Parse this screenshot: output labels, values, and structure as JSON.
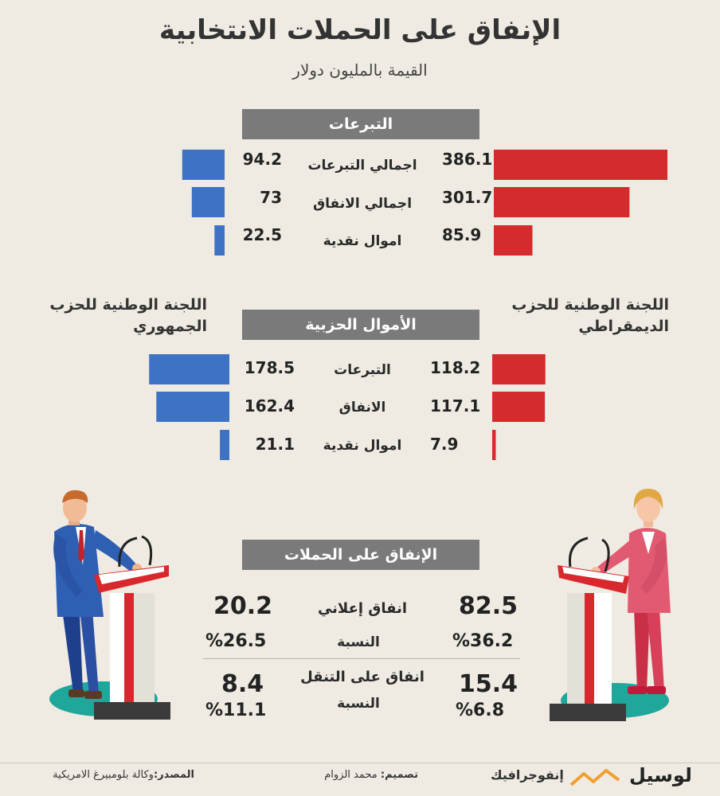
{
  "header": {
    "title": "الإنفاق على الحملات الانتخابية",
    "subtitle": "القيمة بالمليون دولار"
  },
  "sections": {
    "donations": {
      "title": "التبرعات",
      "rows": [
        {
          "label": "اجمالي التبرعات",
          "dem": "386.1",
          "rep": "94.2"
        },
        {
          "label": "اجمالي الانفاق",
          "dem": "301.7",
          "rep": "73"
        },
        {
          "label": "اموال نقدية",
          "dem": "85.9",
          "rep": "22.5"
        }
      ]
    },
    "party_funds": {
      "title": "الأموال الحزبية",
      "rows": [
        {
          "label": "التبرعات",
          "dem": "118.2",
          "rep": "178.5"
        },
        {
          "label": "الانفاق",
          "dem": "117.1",
          "rep": "162.4"
        },
        {
          "label": "اموال نقدية",
          "dem": "7.9",
          "rep": "21.1"
        }
      ]
    },
    "campaign_spending": {
      "title": "الإنفاق على الحملات",
      "items": [
        {
          "label": "انفاق إعلاني",
          "dem": "82.5",
          "rep": "20.2",
          "pct_label": "النسبة",
          "dem_pct": "%36.2",
          "rep_pct": "%26.5"
        },
        {
          "label": "انفاق على التنقل",
          "dem": "15.4",
          "rep": "8.4",
          "pct_label": "النسبة",
          "dem_pct": "%6.8",
          "rep_pct": "%11.1"
        }
      ]
    }
  },
  "legend": {
    "dem": "اللجنة الوطنية للحزب الديمقراطي",
    "rep": "اللجنة الوطنية للحزب الجمهوري"
  },
  "footer": {
    "brand": "لوسيل",
    "infographic": "إنفوجرافيك",
    "design_label": "تصميم:",
    "design_name": "محمد الزوام",
    "source_label": "المصدر:",
    "source_name": "وكالة بلومبيرغ الامريكية"
  },
  "colors": {
    "background": "#efebe2",
    "dem": "#d42b2d",
    "rep": "#3d72c4",
    "header": "#7a7a7a",
    "brand_accent": "#f0a030"
  },
  "chart_data": [
    {
      "type": "bar",
      "title": "التبرعات",
      "categories": [
        "اجمالي التبرعات",
        "اجمالي الانفاق",
        "اموال نقدية"
      ],
      "series": [
        {
          "name": "اللجنة الوطنية للحزب الديمقراطي",
          "values": [
            386.1,
            301.7,
            85.9
          ]
        },
        {
          "name": "اللجنة الوطنية للحزب الجمهوري",
          "values": [
            94.2,
            73,
            22.5
          ]
        }
      ]
    },
    {
      "type": "bar",
      "title": "الأموال الحزبية",
      "categories": [
        "التبرعات",
        "الانفاق",
        "اموال نقدية"
      ],
      "series": [
        {
          "name": "اللجنة الوطنية للحزب الديمقراطي",
          "values": [
            118.2,
            117.1,
            7.9
          ]
        },
        {
          "name": "اللجنة الوطنية للحزب الجمهوري",
          "values": [
            178.5,
            162.4,
            21.1
          ]
        }
      ]
    }
  ]
}
